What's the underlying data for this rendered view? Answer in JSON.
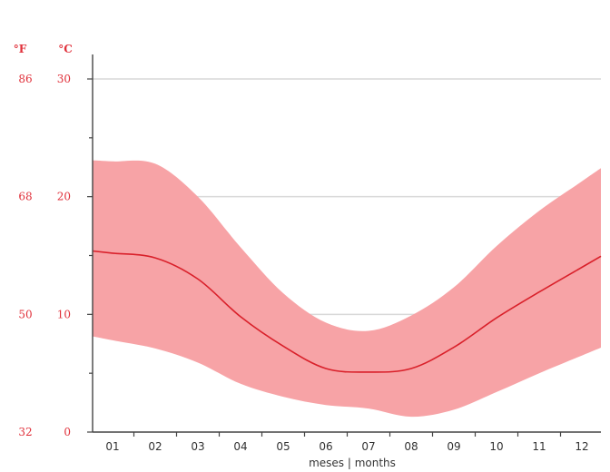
{
  "chart_data": {
    "type": "area",
    "x_label": "meses | months",
    "categories": [
      "01",
      "02",
      "03",
      "04",
      "05",
      "06",
      "07",
      "08",
      "09",
      "10",
      "11",
      "12"
    ],
    "y_units": {
      "fahrenheit": "°F",
      "celsius": "°C"
    },
    "y_ticks_celsius": [
      0,
      10,
      20,
      30
    ],
    "y_ticks_fahrenheit": [
      32,
      50,
      68,
      86
    ],
    "ylim": [
      0,
      30
    ],
    "grid": true,
    "series": [
      {
        "key": "mean",
        "values": [
          15.2,
          14.8,
          13.0,
          9.8,
          7.3,
          5.4,
          5.1,
          5.4,
          7.2,
          9.7,
          11.9,
          14.0
        ]
      },
      {
        "key": "max",
        "values": [
          23.0,
          22.8,
          20.0,
          15.7,
          11.8,
          9.3,
          8.6,
          9.9,
          12.3,
          15.8,
          18.8,
          21.3
        ]
      },
      {
        "key": "min",
        "values": [
          7.8,
          7.1,
          5.9,
          4.1,
          3.0,
          2.3,
          2.0,
          1.3,
          1.9,
          3.4,
          5.0,
          6.5
        ]
      }
    ],
    "colors": {
      "band": "#f7a3a6",
      "line": "#d9202a",
      "grid": "#d9d9d9",
      "axis": "#444444",
      "tick_label": "#e0303a"
    }
  }
}
